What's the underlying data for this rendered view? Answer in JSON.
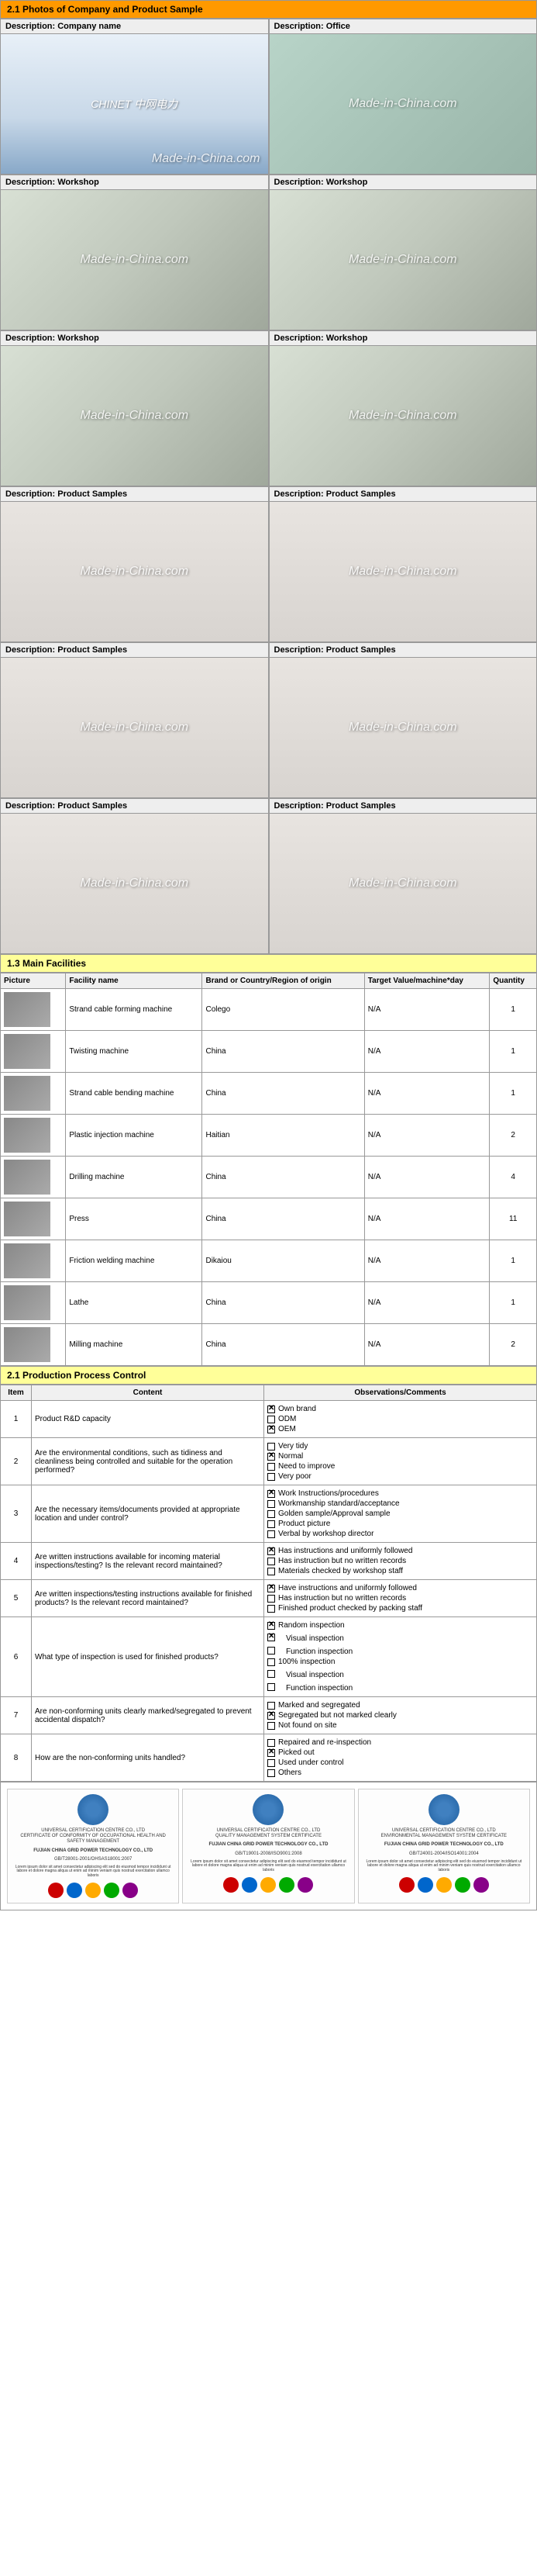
{
  "sections": {
    "photos_title": "2.1 Photos of Company and Product Sample",
    "facilities_title": "1.3 Main Facilities",
    "process_title": "2.1 Production Process Control"
  },
  "watermark": "Made-in-China.com",
  "photo_labels": {
    "company": "Description: Company name",
    "office": "Description: Office",
    "workshop": "Description: Workshop",
    "samples": "Description: Product Samples"
  },
  "company_logo_text": "CHINET 中网电力",
  "fac_headers": {
    "picture": "Picture",
    "name": "Facility name",
    "brand": "Brand or Country/Region of origin",
    "target": "Target Value/machine*day",
    "qty": "Quantity"
  },
  "facilities": [
    {
      "name": "Strand cable forming machine",
      "brand": "Colego",
      "target": "N/A",
      "qty": "1"
    },
    {
      "name": "Twisting machine",
      "brand": "China",
      "target": "N/A",
      "qty": "1"
    },
    {
      "name": "Strand cable bending machine",
      "brand": "China",
      "target": "N/A",
      "qty": "1"
    },
    {
      "name": "Plastic injection machine",
      "brand": "Haitian",
      "target": "N/A",
      "qty": "2"
    },
    {
      "name": "Drilling machine",
      "brand": "China",
      "target": "N/A",
      "qty": "4"
    },
    {
      "name": "Press",
      "brand": "China",
      "target": "N/A",
      "qty": "11"
    },
    {
      "name": "Friction welding machine",
      "brand": "Dikaiou",
      "target": "N/A",
      "qty": "1"
    },
    {
      "name": "Lathe",
      "brand": "China",
      "target": "N/A",
      "qty": "1"
    },
    {
      "name": "Milling machine",
      "brand": "China",
      "target": "N/A",
      "qty": "2"
    }
  ],
  "proc_headers": {
    "item": "Item",
    "content": "Content",
    "obs": "Observations/Comments"
  },
  "process": [
    {
      "n": "1",
      "content": "Product R&D capacity",
      "opts": [
        {
          "c": true,
          "t": "Own brand"
        },
        {
          "c": false,
          "t": "ODM"
        },
        {
          "c": true,
          "t": "OEM"
        }
      ]
    },
    {
      "n": "2",
      "content": "Are the environmental conditions, such as tidiness and cleanliness being controlled and suitable for the operation performed?",
      "opts": [
        {
          "c": false,
          "t": "Very tidy"
        },
        {
          "c": true,
          "t": "Normal"
        },
        {
          "c": false,
          "t": "Need to improve"
        },
        {
          "c": false,
          "t": "Very poor"
        }
      ]
    },
    {
      "n": "3",
      "content": "Are the necessary items/documents provided at appropriate location and under control?",
      "opts": [
        {
          "c": true,
          "t": "Work Instructions/procedures"
        },
        {
          "c": false,
          "t": "Workmanship standard/acceptance"
        },
        {
          "c": false,
          "t": "Golden sample/Approval sample"
        },
        {
          "c": false,
          "t": "Product picture"
        },
        {
          "c": false,
          "t": "Verbal by workshop director"
        }
      ]
    },
    {
      "n": "4",
      "content": "Are written instructions available for incoming material inspections/testing? Is the relevant record maintained?",
      "opts": [
        {
          "c": true,
          "t": "Has instructions and uniformly followed"
        },
        {
          "c": false,
          "t": "Has instruction but no written records"
        },
        {
          "c": false,
          "t": "Materials checked by workshop staff"
        }
      ]
    },
    {
      "n": "5",
      "content": "Are written inspections/testing instructions available for finished products? Is the relevant record maintained?",
      "opts": [
        {
          "c": true,
          "t": "Have instructions and uniformly followed"
        },
        {
          "c": false,
          "t": "Has instruction but no written records"
        },
        {
          "c": false,
          "t": "Finished product checked by packing staff"
        }
      ]
    },
    {
      "n": "6",
      "content": "What type of inspection is used for finished products?",
      "opts": [
        {
          "c": true,
          "t": "Random inspection"
        },
        {
          "c": true,
          "t": "　Visual inspection"
        },
        {
          "c": false,
          "t": "　Function inspection"
        },
        {
          "c": false,
          "t": "100% inspection"
        },
        {
          "c": false,
          "t": "　Visual inspection"
        },
        {
          "c": false,
          "t": "　Function inspection"
        }
      ]
    },
    {
      "n": "7",
      "content": "Are non-conforming units clearly marked/segregated to prevent accidental dispatch?",
      "opts": [
        {
          "c": false,
          "t": "Marked and segregated"
        },
        {
          "c": true,
          "t": "Segregated but not marked clearly"
        },
        {
          "c": false,
          "t": "Not found on site"
        }
      ]
    },
    {
      "n": "8",
      "content": "How are the non-conforming units handled?",
      "opts": [
        {
          "c": false,
          "t": "Repaired and re-inspection"
        },
        {
          "c": true,
          "t": "Picked out"
        },
        {
          "c": false,
          "t": "Used under control"
        },
        {
          "c": false,
          "t": "Others"
        }
      ]
    }
  ],
  "cert": {
    "org": "UNIVERSAL CERTIFICATION CENTRE CO., LTD",
    "sub": "CERTIFICATE OF CONFORMITY OF OCCUPATIONAL HEALTH AND SAFETY MANAGEMENT",
    "sub2": "QUALITY MANAGEMENT SYSTEM CERTIFICATE",
    "sub3": "ENVIRONMENTAL MANAGEMENT SYSTEM CERTIFICATE",
    "company": "FUJIAN CHINA GRID POWER TECHNOLOGY CO., LTD",
    "std1": "GB/T28001-2001/OHSAS18001:2007",
    "std2": "GB/T19001-2008/ISO9001:2008",
    "std3": "GB/T24001-2004/ISO14001:2004"
  }
}
